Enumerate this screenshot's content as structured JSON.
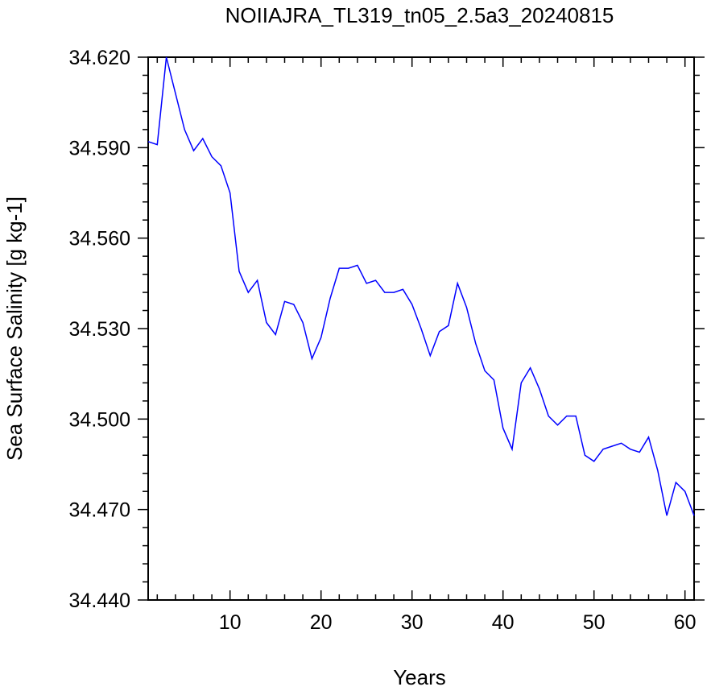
{
  "chart_data": {
    "type": "line",
    "title": "NOIIAJRA_TL319_tn05_2.5a3_20240815",
    "xlabel": "Years",
    "ylabel": "Sea Surface Salinity [g kg-1]",
    "xlim": [
      1,
      61
    ],
    "ylim": [
      34.44,
      34.62
    ],
    "x_ticks": [
      10,
      20,
      30,
      40,
      50,
      60
    ],
    "y_ticks": [
      "34.440",
      "34.470",
      "34.500",
      "34.530",
      "34.560",
      "34.590",
      "34.620"
    ],
    "grid": false,
    "line_color": "#0000ff",
    "series": [
      {
        "x": [
          1,
          2,
          3,
          4,
          5,
          6,
          7,
          8,
          9,
          10,
          11,
          12,
          13,
          14,
          15,
          16,
          17,
          18,
          19,
          20,
          21,
          22,
          23,
          24,
          25,
          26,
          27,
          28,
          29,
          30,
          31,
          32,
          33,
          34,
          35,
          36,
          37,
          38,
          39,
          40,
          41,
          42,
          43,
          44,
          45,
          46,
          47,
          48,
          49,
          50,
          51,
          52,
          53,
          54,
          55,
          56,
          57,
          58,
          59,
          60,
          61
        ],
        "values": [
          34.592,
          34.591,
          34.62,
          34.608,
          34.596,
          34.589,
          34.593,
          34.587,
          34.584,
          34.575,
          34.549,
          34.542,
          34.546,
          34.532,
          34.528,
          34.539,
          34.538,
          34.532,
          34.52,
          34.527,
          34.54,
          34.55,
          34.55,
          34.551,
          34.545,
          34.546,
          34.542,
          34.542,
          34.543,
          34.538,
          34.53,
          34.521,
          34.529,
          34.531,
          34.545,
          34.537,
          34.525,
          34.516,
          34.513,
          34.497,
          34.49,
          34.512,
          34.517,
          34.51,
          34.501,
          34.498,
          34.501,
          34.501,
          34.488,
          34.486,
          34.49,
          34.491,
          34.492,
          34.49,
          34.489,
          34.494,
          34.483,
          34.468,
          34.479,
          34.476,
          34.468
        ]
      }
    ]
  }
}
